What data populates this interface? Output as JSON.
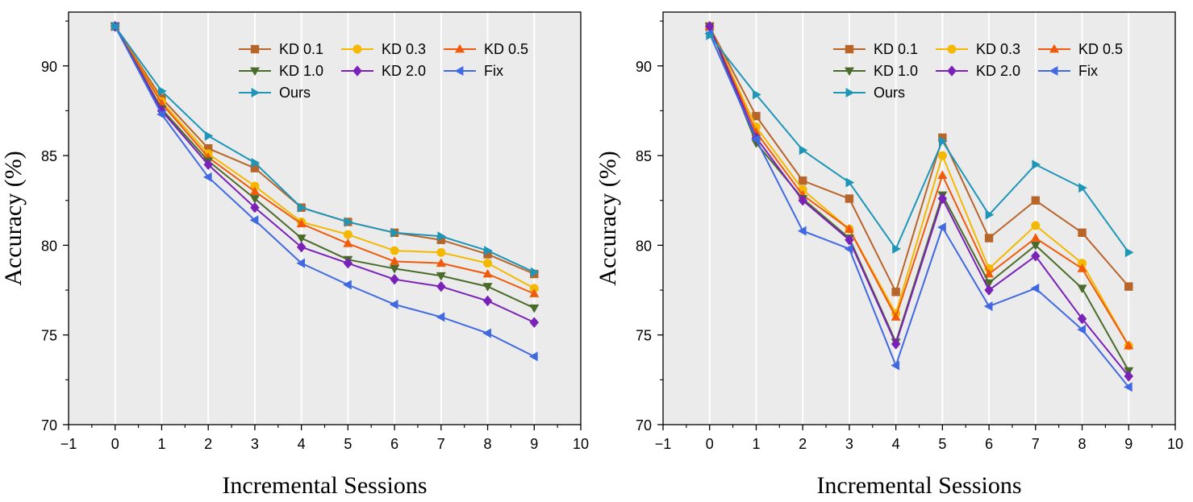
{
  "chart_data": [
    {
      "type": "line",
      "title": "",
      "xlabel": "Incremental Sessions",
      "ylabel": "Accuracy (%)",
      "xlim": [
        -1,
        10
      ],
      "ylim": [
        70,
        93
      ],
      "xticks": [
        -1,
        0,
        1,
        2,
        3,
        4,
        5,
        6,
        7,
        8,
        9,
        10
      ],
      "xtick_labels": [
        "−1",
        "0",
        "1",
        "2",
        "3",
        "4",
        "5",
        "6",
        "7",
        "8",
        "9",
        "10"
      ],
      "yticks": [
        70,
        75,
        80,
        85,
        90
      ],
      "grid": "vertical",
      "legend_position": "top-right",
      "x": [
        0,
        1,
        2,
        3,
        4,
        5,
        6,
        7,
        8,
        9
      ],
      "series": [
        {
          "name": "KD 0.1",
          "color": "#B8652A",
          "marker": "square",
          "values": [
            92.2,
            88.2,
            85.4,
            84.3,
            82.1,
            81.3,
            80.7,
            80.3,
            79.5,
            78.4
          ]
        },
        {
          "name": "KD 0.3",
          "color": "#F5B800",
          "marker": "circle",
          "values": [
            92.2,
            88.0,
            85.1,
            83.3,
            81.3,
            80.6,
            79.7,
            79.6,
            79.0,
            77.6
          ]
        },
        {
          "name": "KD 0.5",
          "color": "#F05A0A",
          "marker": "triangle-up",
          "values": [
            92.2,
            87.9,
            84.9,
            83.0,
            81.2,
            80.1,
            79.1,
            79.0,
            78.4,
            77.3
          ]
        },
        {
          "name": "KD 1.0",
          "color": "#4A6B2A",
          "marker": "triangle-down",
          "values": [
            92.2,
            87.6,
            84.7,
            82.6,
            80.4,
            79.2,
            78.7,
            78.3,
            77.7,
            76.5
          ]
        },
        {
          "name": "KD 2.0",
          "color": "#7A22B8",
          "marker": "diamond",
          "values": [
            92.2,
            87.5,
            84.5,
            82.1,
            79.9,
            79.0,
            78.1,
            77.7,
            76.9,
            75.7
          ]
        },
        {
          "name": "Fix",
          "color": "#4169E1",
          "marker": "triangle-left",
          "values": [
            92.2,
            87.3,
            83.8,
            81.4,
            79.0,
            77.8,
            76.7,
            76.0,
            75.1,
            73.8
          ]
        },
        {
          "name": "Ours",
          "color": "#1E96B8",
          "marker": "triangle-right",
          "values": [
            92.2,
            88.6,
            86.1,
            84.6,
            82.1,
            81.3,
            80.7,
            80.5,
            79.7,
            78.5
          ]
        }
      ]
    },
    {
      "type": "line",
      "title": "",
      "xlabel": "Incremental Sessions",
      "ylabel": "Accuracy (%)",
      "xlim": [
        -1,
        10
      ],
      "ylim": [
        70,
        93
      ],
      "xticks": [
        -1,
        0,
        1,
        2,
        3,
        4,
        5,
        6,
        7,
        8,
        9,
        10
      ],
      "xtick_labels": [
        "−1",
        "0",
        "1",
        "2",
        "3",
        "4",
        "5",
        "6",
        "7",
        "8",
        "9",
        "10"
      ],
      "yticks": [
        70,
        75,
        80,
        85,
        90
      ],
      "grid": "vertical",
      "legend_position": "top-right",
      "x": [
        0,
        1,
        2,
        3,
        4,
        5,
        6,
        7,
        8,
        9
      ],
      "series": [
        {
          "name": "KD 0.1",
          "color": "#B8652A",
          "marker": "square",
          "values": [
            92.2,
            87.2,
            83.6,
            82.6,
            77.4,
            86.0,
            80.4,
            82.5,
            80.7,
            77.7
          ]
        },
        {
          "name": "KD 0.3",
          "color": "#F5B800",
          "marker": "circle",
          "values": [
            92.2,
            86.6,
            83.1,
            80.9,
            76.2,
            85.0,
            78.7,
            81.1,
            79.0,
            74.4
          ]
        },
        {
          "name": "KD 0.5",
          "color": "#F05A0A",
          "marker": "triangle-up",
          "values": [
            92.2,
            86.3,
            82.8,
            80.9,
            76.0,
            83.9,
            78.4,
            80.4,
            78.7,
            74.4
          ]
        },
        {
          "name": "KD 1.0",
          "color": "#4A6B2A",
          "marker": "triangle-down",
          "values": [
            92.2,
            85.7,
            82.6,
            80.4,
            74.6,
            82.8,
            77.9,
            80.0,
            77.6,
            73.0
          ]
        },
        {
          "name": "KD 2.0",
          "color": "#7A22B8",
          "marker": "diamond",
          "values": [
            92.2,
            86.0,
            82.5,
            80.3,
            74.5,
            82.6,
            77.5,
            79.4,
            75.9,
            72.7
          ]
        },
        {
          "name": "Fix",
          "color": "#4169E1",
          "marker": "triangle-left",
          "values": [
            91.8,
            85.9,
            80.8,
            79.8,
            73.3,
            81.0,
            76.6,
            77.6,
            75.3,
            72.1
          ]
        },
        {
          "name": "Ours",
          "color": "#1E96B8",
          "marker": "triangle-right",
          "values": [
            91.7,
            88.4,
            85.3,
            83.5,
            79.8,
            85.8,
            81.7,
            84.5,
            83.2,
            79.6
          ]
        }
      ]
    }
  ]
}
